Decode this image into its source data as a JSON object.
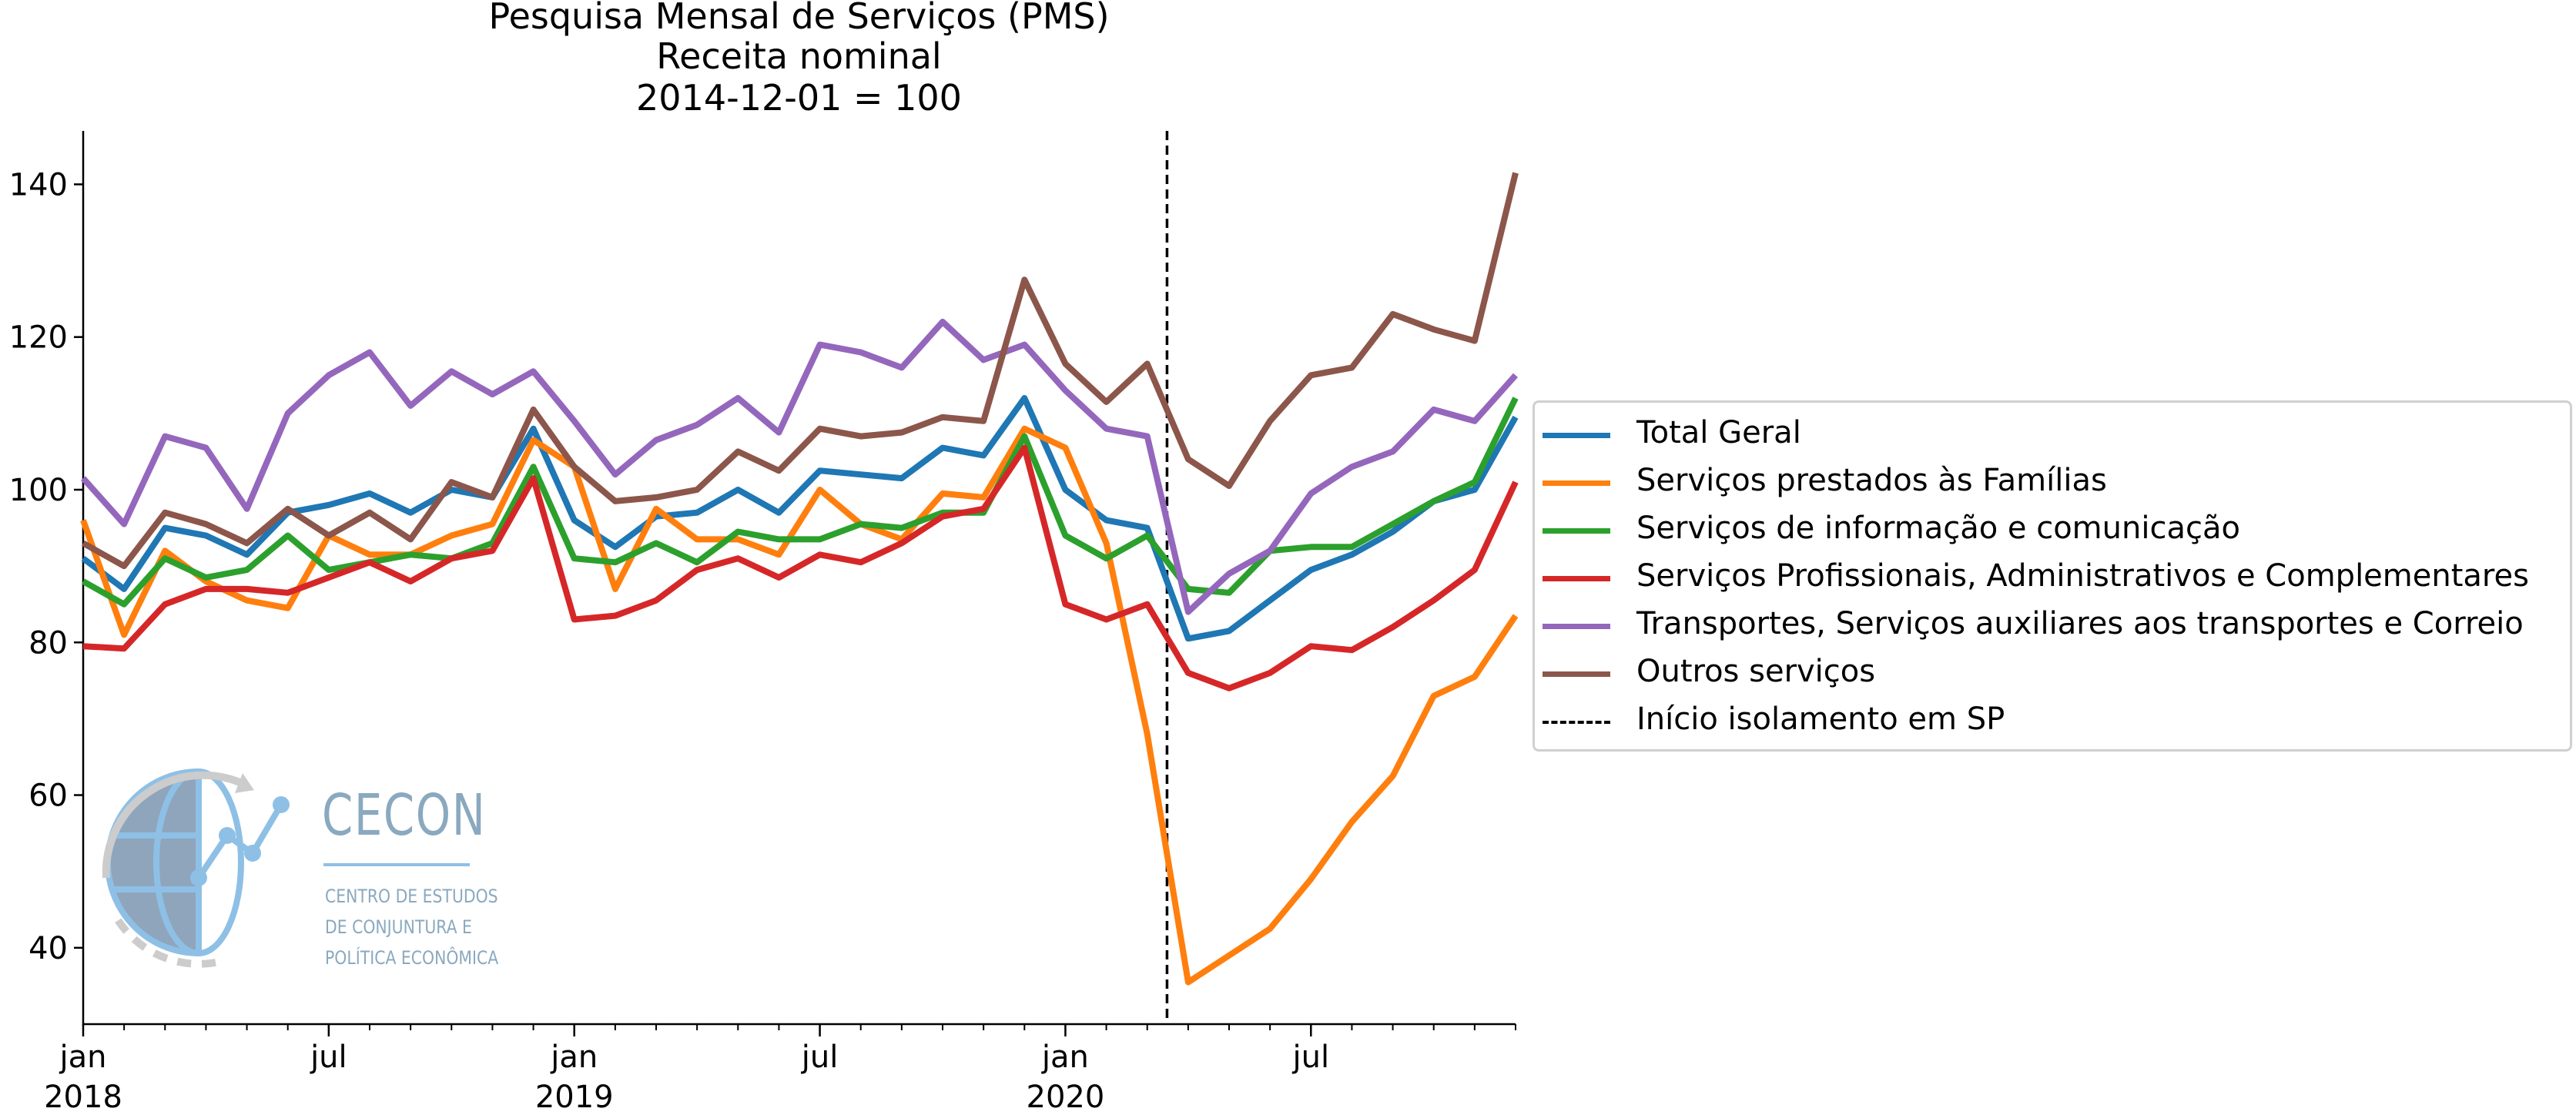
{
  "chart_data": {
    "type": "line",
    "title": [
      "Pesquisa Mensal de Serviços (PMS)",
      "Receita nominal",
      "2014-12-01 = 100"
    ],
    "x": [
      "2018-01",
      "2018-02",
      "2018-03",
      "2018-04",
      "2018-05",
      "2018-06",
      "2018-07",
      "2018-08",
      "2018-09",
      "2018-10",
      "2018-11",
      "2018-12",
      "2019-01",
      "2019-02",
      "2019-03",
      "2019-04",
      "2019-05",
      "2019-06",
      "2019-07",
      "2019-08",
      "2019-09",
      "2019-10",
      "2019-11",
      "2019-12",
      "2020-01",
      "2020-02",
      "2020-03",
      "2020-04",
      "2020-05",
      "2020-06",
      "2020-07",
      "2020-08",
      "2020-09",
      "2020-10",
      "2020-11",
      "2020-12"
    ],
    "xticks": [
      {
        "x": "2018-01",
        "label": "jan",
        "sublabel": "2018"
      },
      {
        "x": "2018-07",
        "label": "jul",
        "sublabel": ""
      },
      {
        "x": "2019-01",
        "label": "jan",
        "sublabel": "2019"
      },
      {
        "x": "2019-07",
        "label": "jul",
        "sublabel": ""
      },
      {
        "x": "2020-01",
        "label": "jan",
        "sublabel": "2020"
      },
      {
        "x": "2020-07",
        "label": "jul",
        "sublabel": ""
      }
    ],
    "yticks": [
      40,
      60,
      80,
      100,
      120,
      140
    ],
    "ylim": [
      30,
      147
    ],
    "grid": false,
    "legend_placement": "right",
    "series": [
      {
        "name": "Total Geral",
        "color": "#1f77b4",
        "values": [
          91,
          87,
          95,
          94,
          91.5,
          97,
          98,
          99.5,
          97,
          100,
          99,
          108,
          96,
          92.5,
          96.5,
          97,
          100,
          97,
          102.5,
          102,
          101.5,
          105.5,
          104.5,
          112,
          100,
          96,
          95,
          80.5,
          81.5,
          85.5,
          89.5,
          91.5,
          94.5,
          98.5,
          100,
          109.5
        ]
      },
      {
        "name": "Serviços prestados às Famílias",
        "color": "#ff7f0e",
        "values": [
          96,
          81,
          92,
          88,
          85.5,
          84.5,
          94,
          91.5,
          91.5,
          94,
          95.5,
          106.5,
          103,
          87,
          97.5,
          93.5,
          93.5,
          91.5,
          100,
          95.5,
          93.5,
          99.5,
          99,
          108,
          105.5,
          93,
          68,
          35.5,
          39,
          42.5,
          49,
          56.5,
          62.5,
          73,
          75.5,
          83.5
        ]
      },
      {
        "name": "Serviços de informação e comunicação",
        "color": "#2ca02c",
        "values": [
          88,
          85,
          91,
          88.5,
          89.5,
          94,
          89.5,
          90.5,
          91.5,
          91,
          93,
          103,
          91,
          90.5,
          93,
          90.5,
          94.5,
          93.5,
          93.5,
          95.5,
          95,
          97,
          97,
          107,
          94,
          91,
          94,
          87,
          86.5,
          92,
          92.5,
          92.5,
          95.5,
          98.5,
          101,
          112
        ]
      },
      {
        "name": "Serviços Profissionais, Administrativos e Complementares",
        "color": "#d62728",
        "values": [
          79.5,
          79.2,
          85,
          87,
          87,
          86.5,
          88.5,
          90.5,
          88,
          91,
          92,
          101.5,
          83,
          83.5,
          85.5,
          89.5,
          91,
          88.5,
          91.5,
          90.5,
          93,
          96.5,
          97.5,
          105.5,
          85,
          83,
          85,
          76,
          74,
          76,
          79.5,
          79,
          82,
          85.5,
          89.5,
          101
        ]
      },
      {
        "name": "Transportes, Serviços auxiliares aos transportes e Correio",
        "color": "#9467bd",
        "values": [
          101.5,
          95.5,
          107,
          105.5,
          97.5,
          110,
          115,
          118,
          111,
          115.5,
          112.5,
          115.5,
          109,
          102,
          106.5,
          108.5,
          112,
          107.5,
          119,
          118,
          116,
          122,
          117,
          119,
          113,
          108,
          107,
          84,
          89,
          92,
          99.5,
          103,
          105,
          110.5,
          109,
          115
        ]
      },
      {
        "name": "Outros serviços",
        "color": "#8c564b",
        "values": [
          93,
          90,
          97,
          95.5,
          93,
          97.5,
          94,
          97,
          93.5,
          101,
          99,
          110.5,
          103,
          98.5,
          99,
          100,
          105,
          102.5,
          108,
          107,
          107.5,
          109.5,
          109,
          127.5,
          116.5,
          111.5,
          116.5,
          104,
          100.5,
          109,
          115,
          116,
          123,
          121,
          119.5,
          141.5
        ]
      }
    ],
    "vline": {
      "x": "2020-03-16",
      "label": "Início isolamento em SP"
    }
  },
  "logo": {
    "name": "CECON",
    "subtitle_lines": [
      "CENTRO DE ESTUDOS",
      "DE CONJUNTURA E",
      "POLÍTICA ECONÔMICA"
    ]
  }
}
